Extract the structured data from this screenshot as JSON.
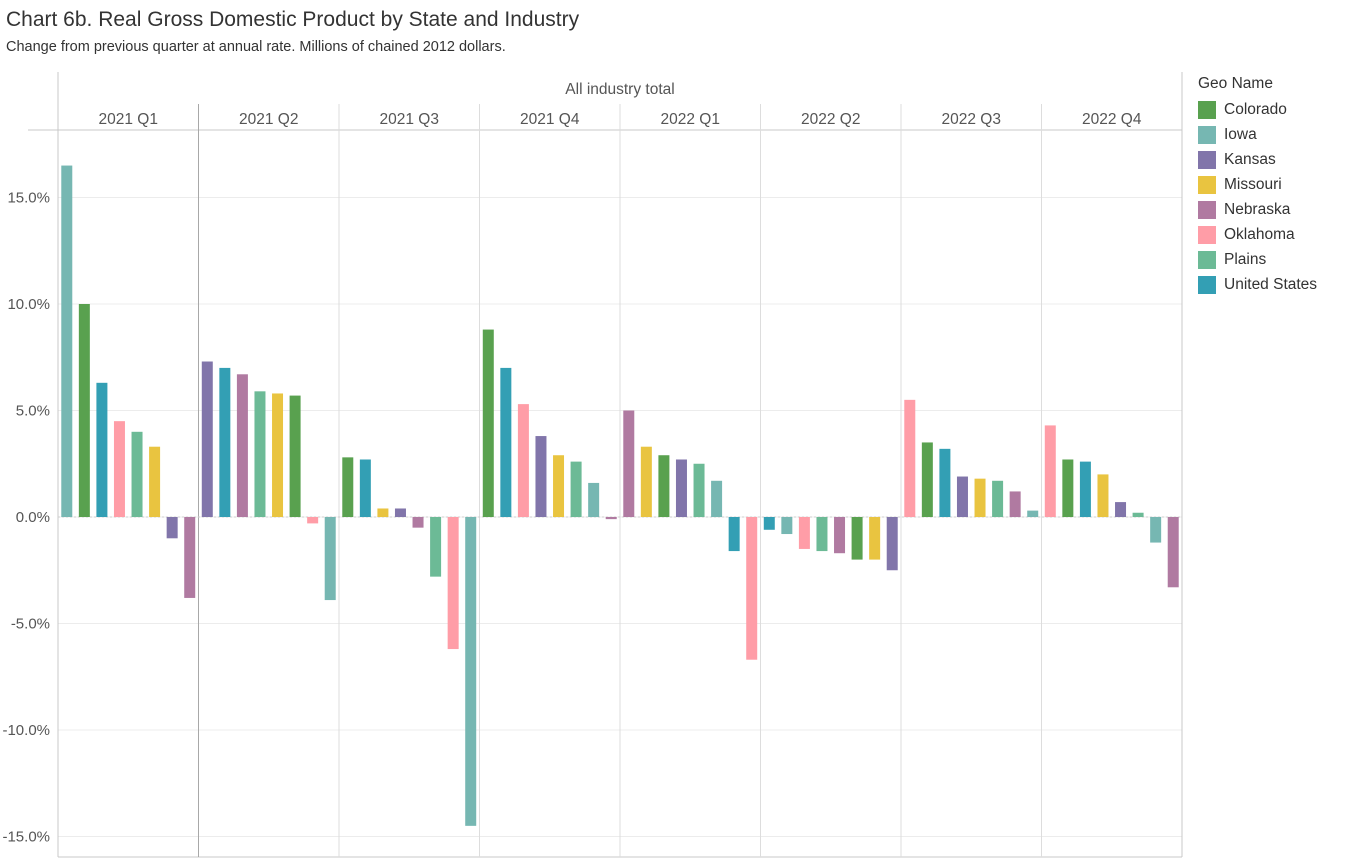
{
  "title": "Chart 6b. Real Gross Domestic Product by State and Industry",
  "subtitle": "Change from previous quarter at annual rate. Millions of chained 2012 dollars.",
  "legend": {
    "title": "Geo Name",
    "items": [
      {
        "name": "Colorado",
        "color": "#59a14f"
      },
      {
        "name": "Iowa",
        "color": "#76b7b2"
      },
      {
        "name": "Kansas",
        "color": "#8175aa"
      },
      {
        "name": "Missouri",
        "color": "#e9c440"
      },
      {
        "name": "Nebraska",
        "color": "#b07aa1"
      },
      {
        "name": "Oklahoma",
        "color": "#ff9da7"
      },
      {
        "name": "Plains",
        "color": "#6cba96"
      },
      {
        "name": "United States",
        "color": "#339fb4"
      }
    ]
  },
  "chart_data": {
    "type": "bar",
    "header": "All industry total",
    "ylim": [
      -16,
      18
    ],
    "yticks": [
      15,
      10,
      5,
      0,
      -5,
      -10,
      -15
    ],
    "ytick_labels": [
      "15.0%",
      "10.0%",
      "5.0%",
      "0.0%",
      "-5.0%",
      "-10.0%",
      "-15.0%"
    ],
    "grid": true,
    "legend_position": "right",
    "panels": [
      {
        "quarter": "2021 Q1",
        "bars": [
          {
            "geo": "Iowa",
            "value": 16.5
          },
          {
            "geo": "Colorado",
            "value": 10.0
          },
          {
            "geo": "United States",
            "value": 6.3
          },
          {
            "geo": "Oklahoma",
            "value": 4.5
          },
          {
            "geo": "Plains",
            "value": 4.0
          },
          {
            "geo": "Missouri",
            "value": 3.3
          },
          {
            "geo": "Kansas",
            "value": -1.0
          },
          {
            "geo": "Nebraska",
            "value": -3.8
          }
        ]
      },
      {
        "quarter": "2021 Q2",
        "bars": [
          {
            "geo": "Kansas",
            "value": 7.3
          },
          {
            "geo": "United States",
            "value": 7.0
          },
          {
            "geo": "Nebraska",
            "value": 6.7
          },
          {
            "geo": "Plains",
            "value": 5.9
          },
          {
            "geo": "Missouri",
            "value": 5.8
          },
          {
            "geo": "Colorado",
            "value": 5.7
          },
          {
            "geo": "Oklahoma",
            "value": -0.3
          },
          {
            "geo": "Iowa",
            "value": -3.9
          }
        ]
      },
      {
        "quarter": "2021 Q3",
        "bars": [
          {
            "geo": "Colorado",
            "value": 2.8
          },
          {
            "geo": "United States",
            "value": 2.7
          },
          {
            "geo": "Missouri",
            "value": 0.4
          },
          {
            "geo": "Kansas",
            "value": 0.4
          },
          {
            "geo": "Nebraska",
            "value": -0.5
          },
          {
            "geo": "Plains",
            "value": -2.8
          },
          {
            "geo": "Oklahoma",
            "value": -6.2
          },
          {
            "geo": "Iowa",
            "value": -14.5
          }
        ]
      },
      {
        "quarter": "2021 Q4",
        "bars": [
          {
            "geo": "Colorado",
            "value": 8.8
          },
          {
            "geo": "United States",
            "value": 7.0
          },
          {
            "geo": "Oklahoma",
            "value": 5.3
          },
          {
            "geo": "Kansas",
            "value": 3.8
          },
          {
            "geo": "Missouri",
            "value": 2.9
          },
          {
            "geo": "Plains",
            "value": 2.6
          },
          {
            "geo": "Iowa",
            "value": 1.6
          },
          {
            "geo": "Nebraska",
            "value": -0.1
          }
        ]
      },
      {
        "quarter": "2022 Q1",
        "bars": [
          {
            "geo": "Nebraska",
            "value": 5.0
          },
          {
            "geo": "Missouri",
            "value": 3.3
          },
          {
            "geo": "Colorado",
            "value": 2.9
          },
          {
            "geo": "Kansas",
            "value": 2.7
          },
          {
            "geo": "Plains",
            "value": 2.5
          },
          {
            "geo": "Iowa",
            "value": 1.7
          },
          {
            "geo": "United States",
            "value": -1.6
          },
          {
            "geo": "Oklahoma",
            "value": -6.7
          }
        ]
      },
      {
        "quarter": "2022 Q2",
        "bars": [
          {
            "geo": "United States",
            "value": -0.6
          },
          {
            "geo": "Iowa",
            "value": -0.8
          },
          {
            "geo": "Oklahoma",
            "value": -1.5
          },
          {
            "geo": "Plains",
            "value": -1.6
          },
          {
            "geo": "Nebraska",
            "value": -1.7
          },
          {
            "geo": "Colorado",
            "value": -2.0
          },
          {
            "geo": "Missouri",
            "value": -2.0
          },
          {
            "geo": "Kansas",
            "value": -2.5
          }
        ]
      },
      {
        "quarter": "2022 Q3",
        "bars": [
          {
            "geo": "Oklahoma",
            "value": 5.5
          },
          {
            "geo": "Colorado",
            "value": 3.5
          },
          {
            "geo": "United States",
            "value": 3.2
          },
          {
            "geo": "Kansas",
            "value": 1.9
          },
          {
            "geo": "Missouri",
            "value": 1.8
          },
          {
            "geo": "Plains",
            "value": 1.7
          },
          {
            "geo": "Nebraska",
            "value": 1.2
          },
          {
            "geo": "Iowa",
            "value": 0.3
          }
        ]
      },
      {
        "quarter": "2022 Q4",
        "bars": [
          {
            "geo": "Oklahoma",
            "value": 4.3
          },
          {
            "geo": "Colorado",
            "value": 2.7
          },
          {
            "geo": "United States",
            "value": 2.6
          },
          {
            "geo": "Missouri",
            "value": 2.0
          },
          {
            "geo": "Kansas",
            "value": 0.7
          },
          {
            "geo": "Plains",
            "value": 0.2
          },
          {
            "geo": "Iowa",
            "value": -1.2
          },
          {
            "geo": "Nebraska",
            "value": -3.3
          }
        ]
      }
    ]
  }
}
